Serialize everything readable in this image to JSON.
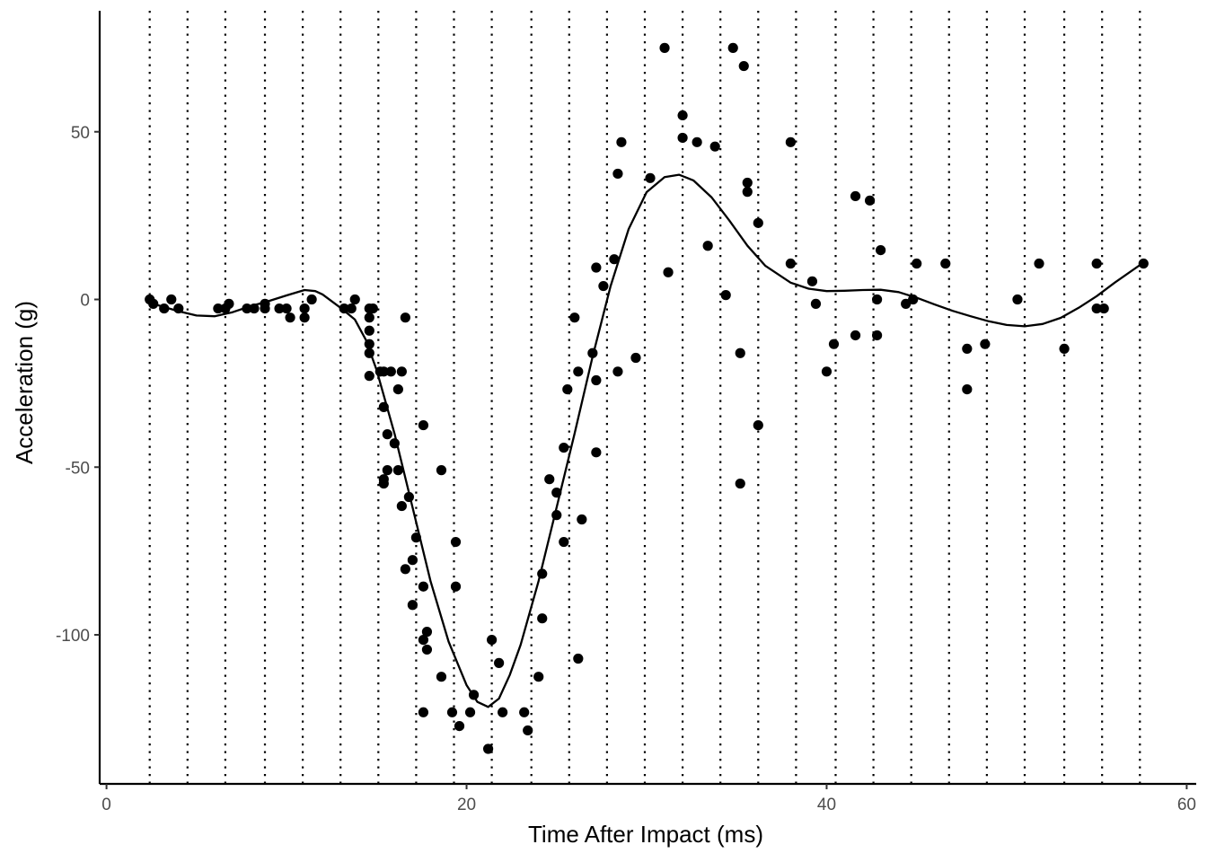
{
  "chart_data": {
    "type": "scatter",
    "title": "",
    "xlabel": "Time After Impact (ms)",
    "ylabel": "Acceleration (g)",
    "xlim": [
      0,
      60
    ],
    "ylim": [
      -140,
      85
    ],
    "x_ticks": [
      0,
      20,
      40,
      60
    ],
    "y_ticks": [
      -100,
      -50,
      0,
      50
    ],
    "grid": false,
    "knot_lines": {
      "style": "dotted",
      "x": [
        2.4,
        4.5,
        6.6,
        8.8,
        10.9,
        13.0,
        15.1,
        17.2,
        19.3,
        21.4,
        23.6,
        25.7,
        27.8,
        29.9,
        32.0,
        34.1,
        36.2,
        38.3,
        40.5,
        42.6,
        44.7,
        46.8,
        48.9,
        51.0,
        53.2,
        55.3,
        57.4
      ]
    },
    "points_color": "#000000",
    "points": [
      [
        2.4,
        0.0
      ],
      [
        2.6,
        -1.3
      ],
      [
        3.2,
        -2.7
      ],
      [
        3.6,
        0.0
      ],
      [
        4.0,
        -2.7
      ],
      [
        6.2,
        -2.7
      ],
      [
        6.6,
        -2.7
      ],
      [
        6.8,
        -1.3
      ],
      [
        7.8,
        -2.7
      ],
      [
        8.2,
        -2.7
      ],
      [
        8.8,
        -2.7
      ],
      [
        8.8,
        -1.3
      ],
      [
        9.6,
        -2.7
      ],
      [
        10.0,
        -2.7
      ],
      [
        10.2,
        -5.4
      ],
      [
        11.0,
        -2.7
      ],
      [
        11.0,
        -5.4
      ],
      [
        11.4,
        0.0
      ],
      [
        13.2,
        -2.7
      ],
      [
        13.6,
        -2.7
      ],
      [
        13.8,
        0.0
      ],
      [
        14.6,
        -2.7
      ],
      [
        14.6,
        -5.4
      ],
      [
        14.8,
        -2.7
      ],
      [
        14.6,
        -9.3
      ],
      [
        14.6,
        -13.3
      ],
      [
        14.6,
        -16.0
      ],
      [
        14.6,
        -22.8
      ],
      [
        15.2,
        -21.5
      ],
      [
        15.4,
        -21.5
      ],
      [
        15.4,
        -32.1
      ],
      [
        15.6,
        -40.2
      ],
      [
        16.0,
        -42.9
      ],
      [
        15.6,
        -50.9
      ],
      [
        15.8,
        -21.5
      ],
      [
        16.2,
        -50.9
      ],
      [
        16.2,
        -26.8
      ],
      [
        15.4,
        -53.6
      ],
      [
        15.4,
        -54.9
      ],
      [
        16.4,
        -21.5
      ],
      [
        16.6,
        -5.4
      ],
      [
        16.4,
        -61.6
      ],
      [
        16.6,
        -80.4
      ],
      [
        16.8,
        -58.9
      ],
      [
        17.2,
        -71.0
      ],
      [
        17.0,
        -77.7
      ],
      [
        17.0,
        -91.1
      ],
      [
        17.6,
        -37.5
      ],
      [
        17.6,
        -123.1
      ],
      [
        17.6,
        -101.5
      ],
      [
        17.6,
        -85.6
      ],
      [
        17.8,
        -99.1
      ],
      [
        17.8,
        -104.4
      ],
      [
        18.6,
        -50.9
      ],
      [
        18.6,
        -112.5
      ],
      [
        19.2,
        -123.1
      ],
      [
        19.4,
        -72.3
      ],
      [
        19.4,
        -85.6
      ],
      [
        19.6,
        -127.2
      ],
      [
        20.2,
        -123.1
      ],
      [
        20.4,
        -117.9
      ],
      [
        21.2,
        -134.0
      ],
      [
        21.4,
        -101.5
      ],
      [
        21.8,
        -108.4
      ],
      [
        22.0,
        -123.1
      ],
      [
        23.2,
        -123.1
      ],
      [
        23.4,
        -128.5
      ],
      [
        24.0,
        -112.5
      ],
      [
        24.2,
        -95.1
      ],
      [
        24.2,
        -81.8
      ],
      [
        24.6,
        -53.6
      ],
      [
        25.0,
        -57.6
      ],
      [
        25.0,
        -64.3
      ],
      [
        25.4,
        -44.2
      ],
      [
        25.4,
        -72.3
      ],
      [
        25.6,
        -26.8
      ],
      [
        26.0,
        -5.4
      ],
      [
        26.2,
        -107.1
      ],
      [
        26.2,
        -21.5
      ],
      [
        26.4,
        -65.6
      ],
      [
        27.0,
        -16.0
      ],
      [
        27.2,
        -24.1
      ],
      [
        27.2,
        -45.6
      ],
      [
        27.2,
        9.5
      ],
      [
        27.6,
        4.0
      ],
      [
        28.2,
        12.0
      ],
      [
        28.4,
        -21.5
      ],
      [
        28.4,
        37.5
      ],
      [
        28.6,
        46.9
      ],
      [
        29.4,
        -17.4
      ],
      [
        30.2,
        36.2
      ],
      [
        31.0,
        75.0
      ],
      [
        31.2,
        8.1
      ],
      [
        32.0,
        54.9
      ],
      [
        32.0,
        48.2
      ],
      [
        32.8,
        46.9
      ],
      [
        33.4,
        16.0
      ],
      [
        33.8,
        45.6
      ],
      [
        34.4,
        1.3
      ],
      [
        34.8,
        75.0
      ],
      [
        35.2,
        -16.0
      ],
      [
        35.2,
        -54.9
      ],
      [
        35.4,
        69.6
      ],
      [
        35.6,
        34.8
      ],
      [
        35.6,
        32.1
      ],
      [
        36.2,
        -37.5
      ],
      [
        36.2,
        22.8
      ],
      [
        38.0,
        46.9
      ],
      [
        38.0,
        10.7
      ],
      [
        39.2,
        5.4
      ],
      [
        39.4,
        -1.3
      ],
      [
        40.0,
        -21.5
      ],
      [
        40.4,
        -13.3
      ],
      [
        41.6,
        30.8
      ],
      [
        41.6,
        -10.7
      ],
      [
        42.4,
        29.5
      ],
      [
        42.8,
        0.0
      ],
      [
        42.8,
        -10.7
      ],
      [
        43.0,
        14.7
      ],
      [
        44.4,
        -1.3
      ],
      [
        44.8,
        0.0
      ],
      [
        45.0,
        10.7
      ],
      [
        46.6,
        10.7
      ],
      [
        47.8,
        -26.8
      ],
      [
        47.8,
        -14.7
      ],
      [
        48.8,
        -13.3
      ],
      [
        50.6,
        0.0
      ],
      [
        51.8,
        10.7
      ],
      [
        53.2,
        -14.7
      ],
      [
        55.0,
        10.7
      ],
      [
        55.0,
        -2.7
      ],
      [
        55.4,
        -2.7
      ],
      [
        57.6,
        10.7
      ]
    ],
    "smooth_curve": {
      "style": "solid",
      "color": "#000000",
      "points": [
        [
          2.4,
          -1.0
        ],
        [
          4.0,
          -3.5
        ],
        [
          5.0,
          -4.8
        ],
        [
          6.0,
          -5.0
        ],
        [
          7.0,
          -3.8
        ],
        [
          8.0,
          -2.0
        ],
        [
          9.0,
          -0.5
        ],
        [
          10.0,
          1.2
        ],
        [
          11.0,
          2.8
        ],
        [
          11.6,
          2.5
        ],
        [
          12.0,
          1.5
        ],
        [
          13.0,
          -2.5
        ],
        [
          13.8,
          -6.0
        ],
        [
          14.4,
          -12.0
        ],
        [
          15.0,
          -21.0
        ],
        [
          16.0,
          -40.0
        ],
        [
          17.0,
          -62.0
        ],
        [
          18.0,
          -84.0
        ],
        [
          19.0,
          -102.0
        ],
        [
          20.0,
          -115.0
        ],
        [
          20.6,
          -120.0
        ],
        [
          21.2,
          -121.5
        ],
        [
          21.8,
          -119.0
        ],
        [
          22.4,
          -112.0
        ],
        [
          23.0,
          -103.0
        ],
        [
          24.0,
          -84.0
        ],
        [
          25.0,
          -62.0
        ],
        [
          26.0,
          -40.0
        ],
        [
          27.0,
          -17.0
        ],
        [
          28.0,
          4.0
        ],
        [
          29.0,
          21.0
        ],
        [
          30.0,
          32.0
        ],
        [
          31.0,
          36.5
        ],
        [
          31.8,
          37.2
        ],
        [
          32.6,
          35.5
        ],
        [
          33.6,
          30.5
        ],
        [
          34.6,
          23.5
        ],
        [
          35.6,
          16.0
        ],
        [
          36.6,
          10.0
        ],
        [
          38.0,
          5.0
        ],
        [
          39.0,
          3.2
        ],
        [
          40.0,
          2.5
        ],
        [
          41.0,
          2.6
        ],
        [
          42.0,
          2.8
        ],
        [
          43.0,
          2.9
        ],
        [
          44.0,
          2.2
        ],
        [
          45.0,
          0.5
        ],
        [
          46.0,
          -1.5
        ],
        [
          47.0,
          -3.4
        ],
        [
          48.0,
          -5.0
        ],
        [
          49.0,
          -6.5
        ],
        [
          50.0,
          -7.6
        ],
        [
          51.0,
          -8.0
        ],
        [
          52.0,
          -7.3
        ],
        [
          53.0,
          -5.5
        ],
        [
          54.0,
          -2.5
        ],
        [
          55.0,
          1.0
        ],
        [
          56.0,
          5.0
        ],
        [
          57.6,
          11.0
        ]
      ]
    }
  }
}
